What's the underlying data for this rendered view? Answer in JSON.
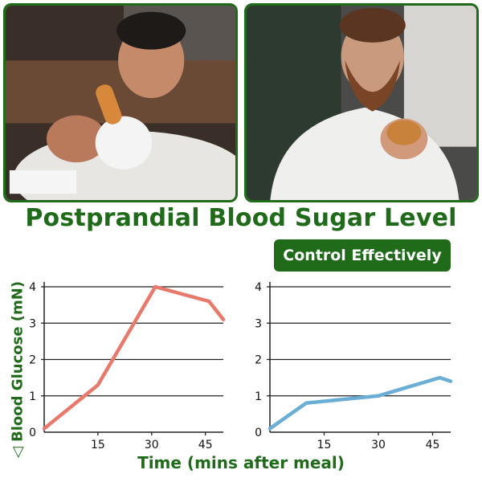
{
  "title": "Postprandial Blood Sugar Level",
  "badge": "Control Effectively",
  "colors": {
    "brand": "#1f6b1a",
    "uncontrolled": "#e87a6b",
    "controlled": "#6aaed6"
  },
  "photos": [
    {
      "name": "man-eating-dessert-photo"
    },
    {
      "name": "man-eating-pastry-photo"
    }
  ],
  "chart_data": {
    "type": "line",
    "ylabel": "Blood Glucose (mN)",
    "xlabel": "Time (mins after meal)",
    "xlim": [
      0,
      50
    ],
    "ylim": [
      0,
      4
    ],
    "xticks": [
      0,
      15,
      30,
      45
    ],
    "yticks": [
      0,
      1,
      2,
      3,
      4
    ],
    "grid": true,
    "panels": [
      {
        "color": "#e87a6b",
        "x": [
          0,
          15,
          31,
          46,
          50
        ],
        "y": [
          0.1,
          1.3,
          4.0,
          3.6,
          3.1
        ]
      },
      {
        "color": "#6aaed6",
        "x": [
          0,
          10,
          30,
          47,
          50
        ],
        "y": [
          0.1,
          0.8,
          1.0,
          1.5,
          1.4
        ]
      }
    ]
  }
}
